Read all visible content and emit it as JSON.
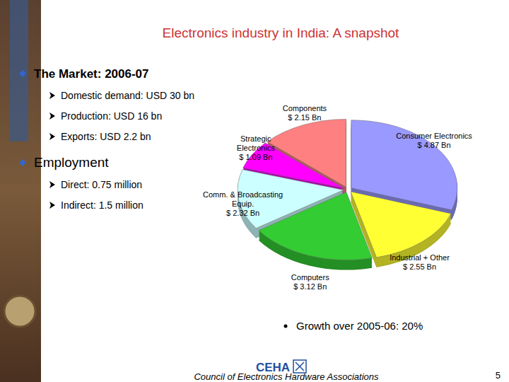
{
  "slide": {
    "title": "Electronics industry in India: A snapshot",
    "bullets": [
      {
        "text": "The Market: 2006-07",
        "items": [
          "Domestic demand: USD 30 bn",
          "Production: USD 16 bn",
          "Exports: USD 2.2 bn"
        ]
      },
      {
        "text": "Employment",
        "items": [
          "Direct: 0.75 million",
          "Indirect: 1.5 million"
        ]
      }
    ],
    "note": "Growth over 2005-06: 20%",
    "logo": "CEHA",
    "footer": "Council of Electronics Hardware Associations",
    "page": "5"
  },
  "chart_data": {
    "type": "pie",
    "categories": [
      "Consumer Electronics",
      "Industrial + Other",
      "Computers",
      "Comm. & Broadcasting Equip.",
      "Strategic Electronics",
      "Components"
    ],
    "values": [
      4.87,
      2.55,
      3.12,
      2.32,
      1.09,
      2.15
    ],
    "value_labels": [
      "$ 4.87 Bn",
      "$ 2.55 Bn",
      "$ 3.12 Bn",
      "$ 2.32 Bn",
      "$ 1.09 Bn",
      "$ 2.15 Bn"
    ],
    "colors": [
      "#9999ff",
      "#ffff33",
      "#33cc33",
      "#ccffff",
      "#ff00ff",
      "#ff8080"
    ],
    "data_labels": true
  }
}
